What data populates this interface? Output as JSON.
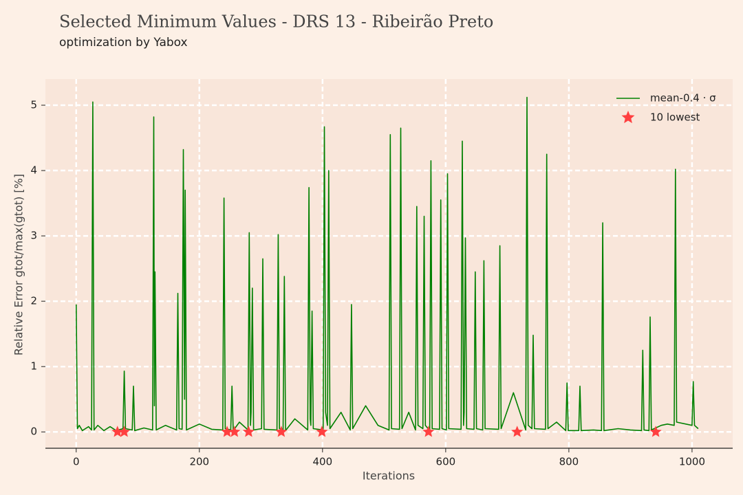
{
  "chart_data": {
    "type": "line",
    "title": "Selected Minimum Values - DRS 13 - Ribeirão Preto",
    "subtitle": "optimization by Yabox",
    "x_label": "Iterations",
    "y_label": "Relative Error gtot/max(gtot) [%]",
    "xlim": [
      -50,
      1066
    ],
    "ylim": [
      -0.25,
      5.4
    ],
    "xticks": [
      0,
      200,
      400,
      600,
      800,
      1000
    ],
    "yticks": [
      0,
      1,
      2,
      3,
      4,
      5
    ],
    "grid": true,
    "legend": "upper right",
    "series": [
      {
        "name": "mean-0.4 · σ",
        "color": "#008000",
        "x": [
          0,
          2,
          5,
          10,
          20,
          25,
          27,
          29,
          35,
          45,
          55,
          65,
          76,
          78,
          80,
          91,
          93,
          95,
          110,
          124,
          126,
          127,
          128,
          130,
          145,
          163,
          165,
          167,
          172,
          174,
          176,
          177,
          179,
          200,
          220,
          238,
          240,
          242,
          251,
          253,
          255,
          265,
          279,
          281,
          283,
          284,
          286,
          288,
          301,
          303,
          305,
          326,
          328,
          330,
          336,
          338,
          340,
          355,
          376,
          378,
          380,
          381,
          383,
          385,
          401,
          403,
          405,
          408,
          410,
          412,
          430,
          445,
          447,
          449,
          470,
          490,
          508,
          510,
          512,
          525,
          527,
          529,
          540,
          551,
          553,
          555,
          563,
          565,
          567,
          574,
          576,
          578,
          590,
          592,
          594,
          601,
          603,
          605,
          625,
          627,
          629,
          630,
          632,
          634,
          646,
          648,
          650,
          660,
          662,
          664,
          686,
          688,
          690,
          710,
          730,
          732,
          734,
          740,
          742,
          744,
          762,
          764,
          766,
          780,
          795,
          797,
          799,
          816,
          818,
          820,
          840,
          853,
          855,
          857,
          880,
          900,
          918,
          920,
          922,
          930,
          932,
          934,
          950,
          960,
          971,
          973,
          975,
          1000,
          1002,
          1004,
          1010
        ],
        "values": [
          1.95,
          0.05,
          0.1,
          0.02,
          0.08,
          0.03,
          5.05,
          0.03,
          0.1,
          0.02,
          0.08,
          0.02,
          0.05,
          0.93,
          0.05,
          0.03,
          0.7,
          0.02,
          0.06,
          0.03,
          4.82,
          0.4,
          2.45,
          0.03,
          0.1,
          0.03,
          2.12,
          0.05,
          0.04,
          4.32,
          0.5,
          3.7,
          0.03,
          0.12,
          0.04,
          0.03,
          3.58,
          0.05,
          0.03,
          0.7,
          0.02,
          0.15,
          0.03,
          3.05,
          0.1,
          0.3,
          2.2,
          0.03,
          0.05,
          2.65,
          0.04,
          0.03,
          3.02,
          0.05,
          0.04,
          2.38,
          0.02,
          0.2,
          0.03,
          3.74,
          0.2,
          0.1,
          1.85,
          0.05,
          0.03,
          4.67,
          0.3,
          0.1,
          4.0,
          0.05,
          0.3,
          0.03,
          1.95,
          0.05,
          0.4,
          0.1,
          0.03,
          4.55,
          0.05,
          0.04,
          4.65,
          0.05,
          0.3,
          0.03,
          3.45,
          0.1,
          0.05,
          3.3,
          0.1,
          0.02,
          4.15,
          0.05,
          0.04,
          3.55,
          0.05,
          0.03,
          3.95,
          0.05,
          0.04,
          4.45,
          0.1,
          0.3,
          2.97,
          0.05,
          0.04,
          2.45,
          0.05,
          0.03,
          2.62,
          0.05,
          0.04,
          2.85,
          0.05,
          0.6,
          0.03,
          5.12,
          0.1,
          0.05,
          1.48,
          0.05,
          0.04,
          4.25,
          0.05,
          0.15,
          0.02,
          0.75,
          0.02,
          0.02,
          0.7,
          0.02,
          0.03,
          0.02,
          3.2,
          0.02,
          0.05,
          0.03,
          0.02,
          1.25,
          0.03,
          0.02,
          1.76,
          0.03,
          0.1,
          0.12,
          0.1,
          4.02,
          0.15,
          0.1,
          0.77,
          0.1,
          0.05
        ]
      },
      {
        "name": "10 lowest",
        "color": "#ff4040",
        "type": "scatter",
        "x": [
          67,
          78,
          245,
          257,
          280,
          333,
          399,
          572,
          716,
          941
        ],
        "values": [
          0,
          0,
          0,
          0,
          0,
          0,
          0,
          0,
          0,
          0
        ]
      }
    ]
  }
}
